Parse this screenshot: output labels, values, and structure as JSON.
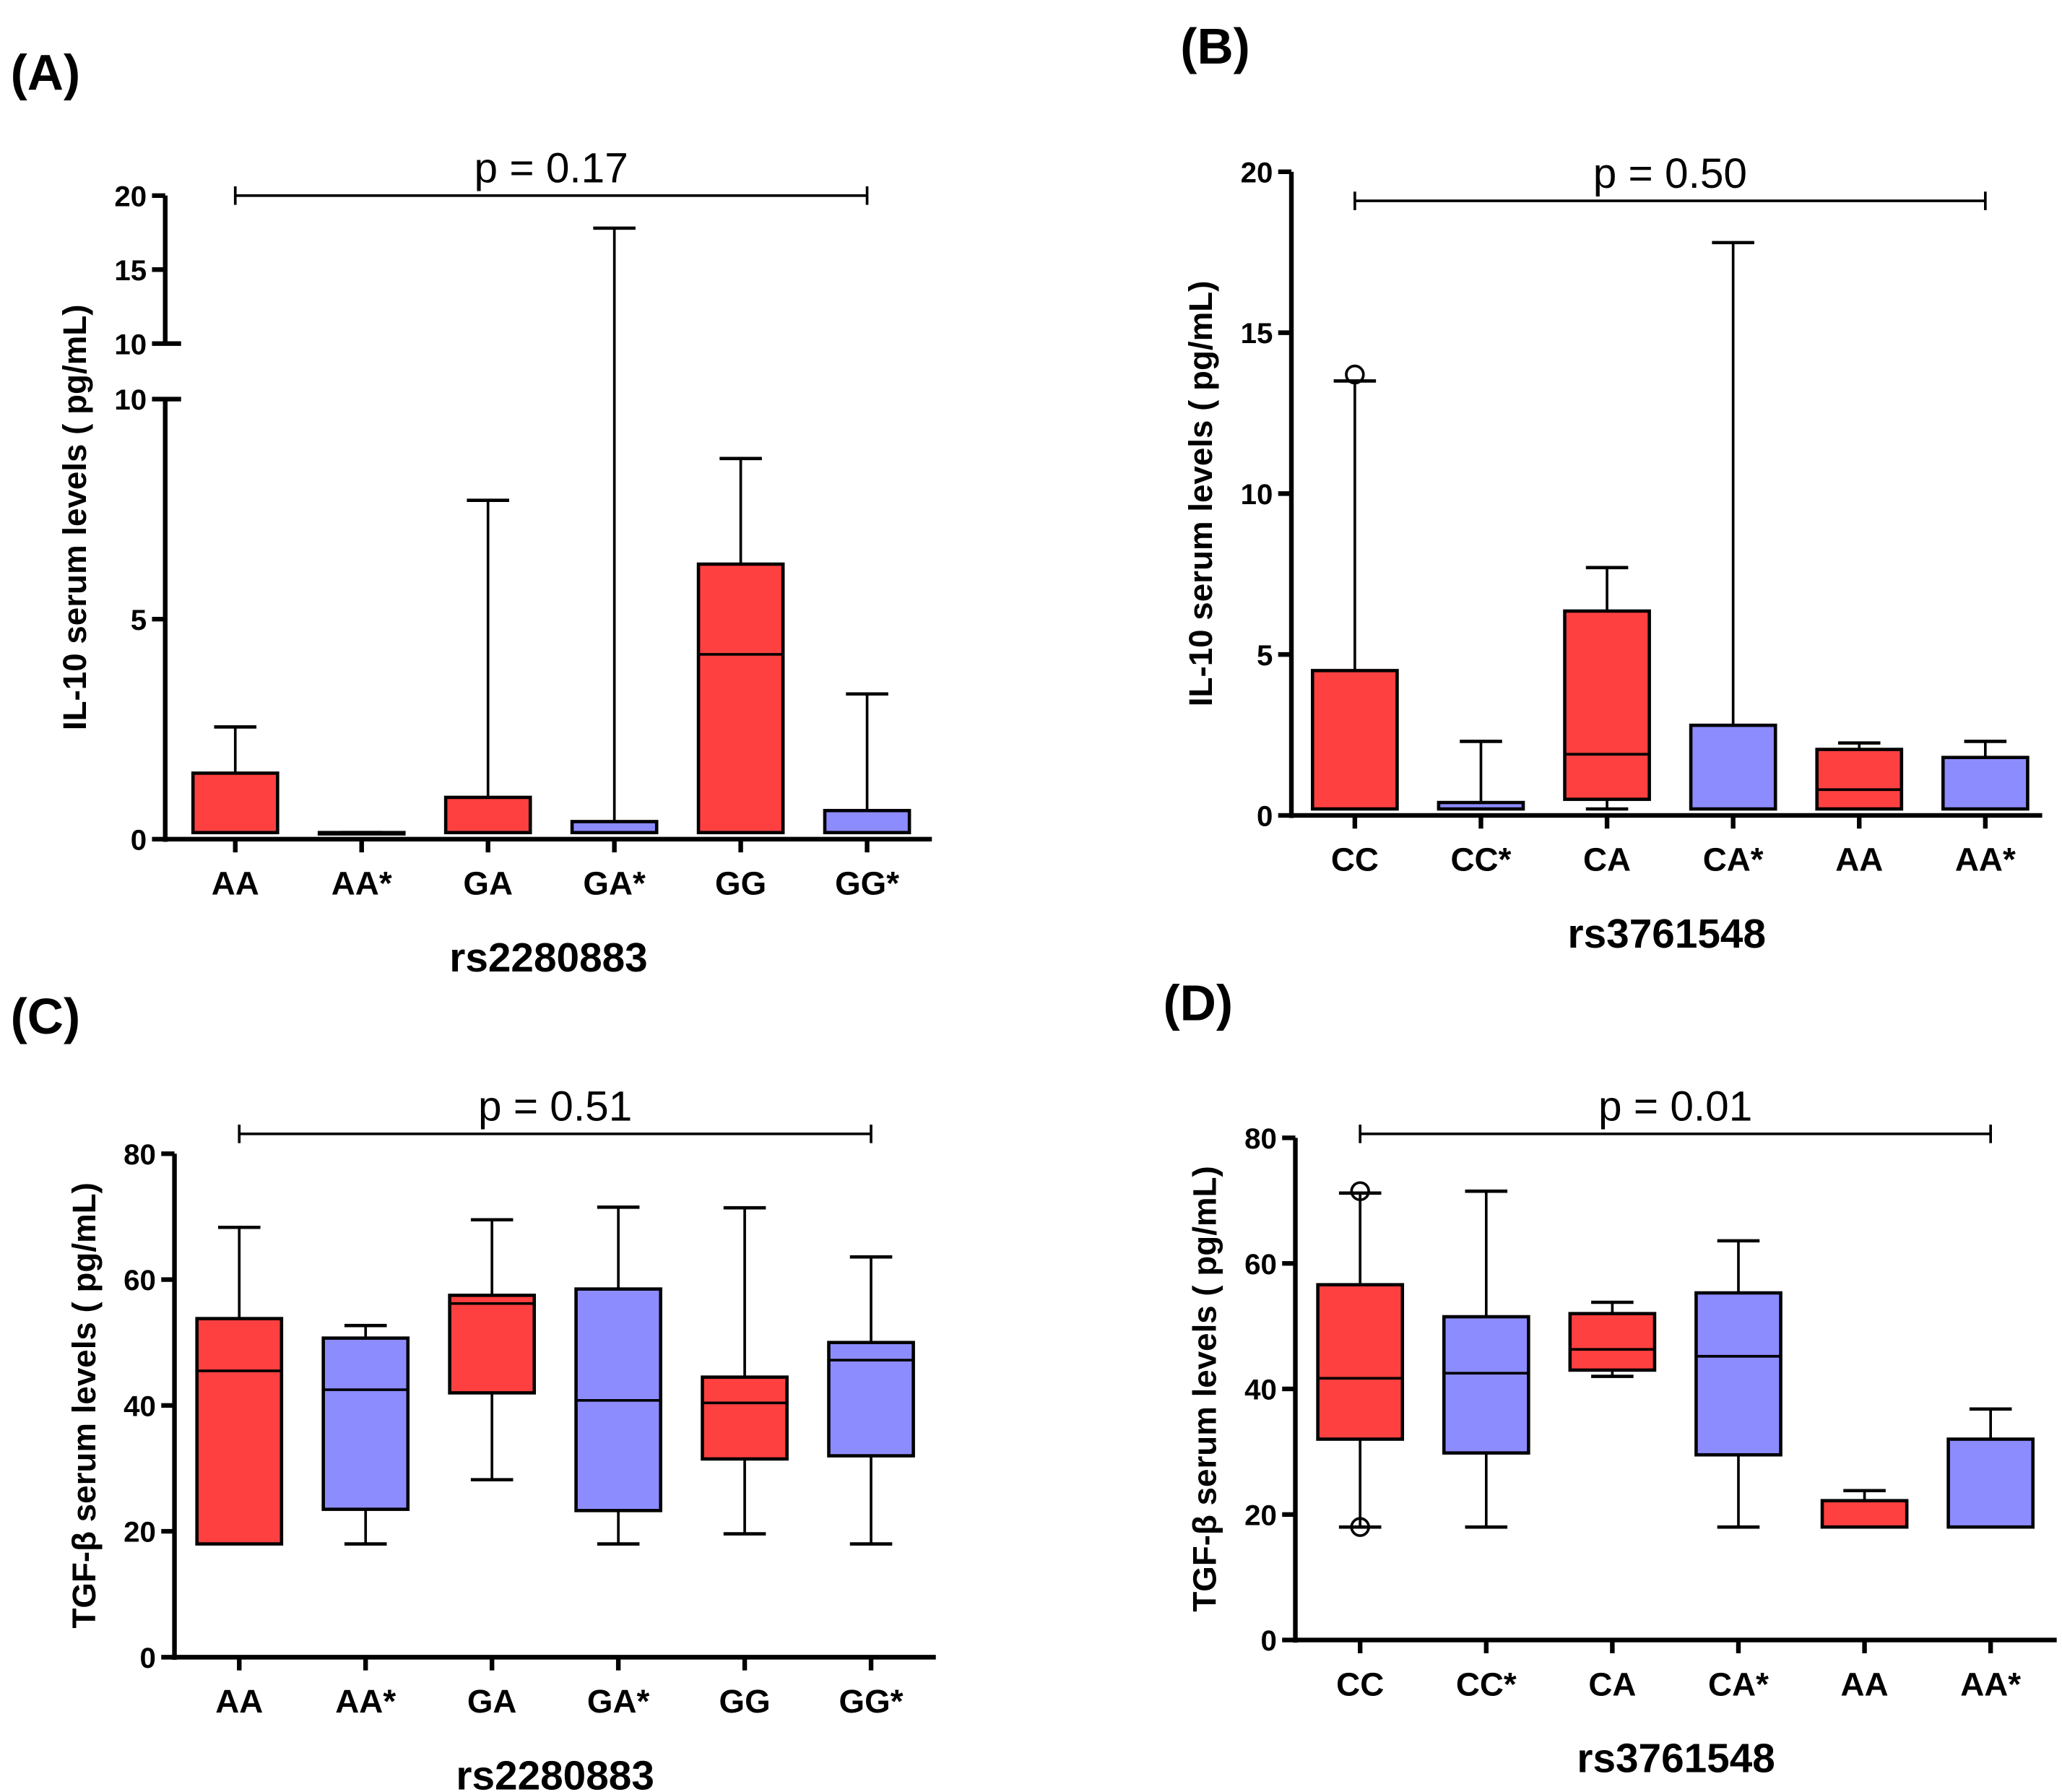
{
  "colors": {
    "red": "#FF4040",
    "blue": "#8C8CFF"
  },
  "chart_data": [
    {
      "type": "box",
      "panel": "(A)",
      "ylabel": "IL-10 serum levels ( pg/mL)",
      "xlabel": "rs2280883",
      "p_value": "p = 0.17",
      "ylim": [
        0,
        20
      ],
      "axis_break": [
        10,
        10
      ],
      "categories": [
        "AA",
        "AA*",
        "GA",
        "GA*",
        "GG",
        "GG*"
      ],
      "colors": [
        "red",
        "blue",
        "red",
        "blue",
        "red",
        "blue"
      ],
      "yticks_lower": [
        "0",
        "5",
        "10"
      ],
      "yticks_upper": [
        "10",
        "15",
        "20"
      ],
      "boxes": [
        [
          0.15,
          0.15,
          0.15,
          1.5,
          2.55
        ],
        [
          0.15,
          0.15,
          0.15,
          0.15,
          0.15
        ],
        [
          0.15,
          0.15,
          0.15,
          0.95,
          7.7
        ],
        [
          0.15,
          0.15,
          0.15,
          0.4,
          17.8
        ],
        [
          0.15,
          0.15,
          4.2,
          6.25,
          8.65
        ],
        [
          0.15,
          0.15,
          0.15,
          0.65,
          3.3
        ]
      ],
      "outliers": [
        [],
        [],
        [],
        [],
        [],
        []
      ]
    },
    {
      "type": "box",
      "panel": "(B)",
      "ylabel": "IL-10 serum levels ( pg/mL)",
      "xlabel": "rs3761548",
      "p_value": "p = 0.50",
      "ylim": [
        0,
        20
      ],
      "categories": [
        "CC",
        "CC*",
        "CA",
        "CA*",
        "AA",
        "AA*"
      ],
      "colors": [
        "red",
        "blue",
        "red",
        "blue",
        "red",
        "blue"
      ],
      "yticks": [
        "0",
        "5",
        "10",
        "15",
        "20"
      ],
      "boxes": [
        [
          0.2,
          0.2,
          0.2,
          4.5,
          13.5
        ],
        [
          0.2,
          0.2,
          0.2,
          0.4,
          2.3
        ],
        [
          0.2,
          0.5,
          1.9,
          6.35,
          7.7
        ],
        [
          0.2,
          0.2,
          0.2,
          2.8,
          17.8
        ],
        [
          0.2,
          0.2,
          0.8,
          2.05,
          2.25
        ],
        [
          0.2,
          0.2,
          0.2,
          1.8,
          2.3
        ]
      ],
      "outliers": [
        [
          13.7
        ],
        [],
        [],
        [],
        [],
        []
      ]
    },
    {
      "type": "box",
      "panel": "(C)",
      "ylabel": "TGF-β serum levels ( pg/mL)",
      "xlabel": "rs2280883",
      "p_value": "p = 0.51",
      "ylim": [
        0,
        80
      ],
      "categories": [
        "AA",
        "AA*",
        "GA",
        "GA*",
        "GG",
        "GG*"
      ],
      "colors": [
        "red",
        "blue",
        "red",
        "blue",
        "red",
        "blue"
      ],
      "yticks": [
        "0",
        "20",
        "40",
        "60",
        "80"
      ],
      "boxes": [
        [
          18,
          18,
          45.5,
          53.8,
          68.3
        ],
        [
          18,
          23.5,
          42.5,
          50.7,
          52.7
        ],
        [
          28.2,
          42,
          56.2,
          57.5,
          69.5
        ],
        [
          18,
          23.3,
          40.8,
          58.5,
          71.5
        ],
        [
          19.6,
          31.5,
          40.4,
          44.5,
          71.4
        ],
        [
          18,
          32,
          47.2,
          50,
          63.6
        ]
      ],
      "outliers": [
        [],
        [],
        [],
        [],
        [],
        []
      ]
    },
    {
      "type": "box",
      "panel": "(D)",
      "ylabel": "TGF-β serum levels ( pg/mL)",
      "xlabel": "rs3761548",
      "p_value": "p = 0.01",
      "ylim": [
        0,
        80
      ],
      "categories": [
        "CC",
        "CC*",
        "CA",
        "CA*",
        "AA",
        "AA*"
      ],
      "colors": [
        "red",
        "blue",
        "red",
        "blue",
        "red",
        "blue"
      ],
      "yticks": [
        "0",
        "20",
        "40",
        "60",
        "80"
      ],
      "boxes": [
        [
          18,
          32,
          41.7,
          56.6,
          71.2
        ],
        [
          18,
          29.8,
          42.5,
          51.5,
          71.5
        ],
        [
          42,
          43,
          46.3,
          52,
          53.8
        ],
        [
          18,
          29.5,
          45.2,
          55.3,
          63.6
        ],
        [
          18,
          18,
          18,
          22.2,
          23.8
        ],
        [
          18,
          18,
          18,
          32,
          36.8
        ]
      ],
      "outliers": [
        [
          71.5,
          18
        ],
        [],
        [],
        [],
        [],
        []
      ]
    }
  ]
}
